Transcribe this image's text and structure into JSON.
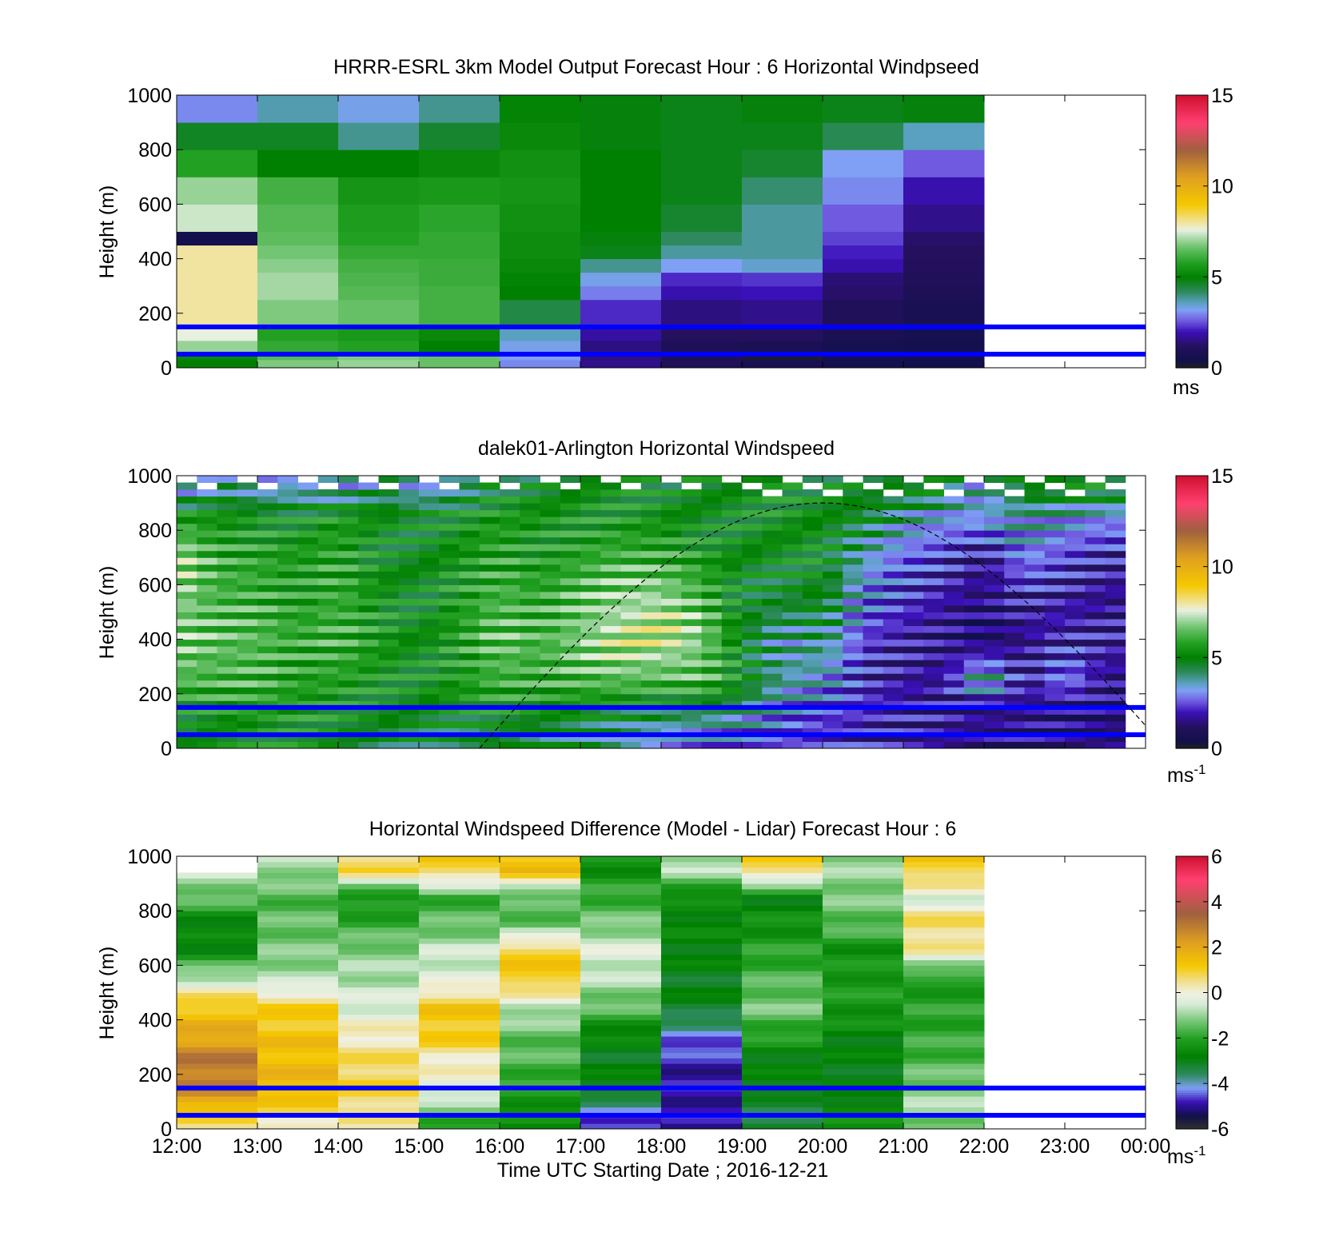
{
  "figure": {
    "xlabel": "Time UTC  Starting Date ; 2016-12-21",
    "x_ticks": [
      "12:00",
      "13:00",
      "14:00",
      "15:00",
      "16:00",
      "17:00",
      "18:00",
      "19:00",
      "20:00",
      "21:00",
      "22:00",
      "23:00",
      "00:00"
    ]
  },
  "colormaps": {
    "speed": [
      [
        0,
        "#202020"
      ],
      [
        0.4,
        "#10104a"
      ],
      [
        1.2,
        "#25105e"
      ],
      [
        2.0,
        "#3a10b8"
      ],
      [
        2.6,
        "#6f5ae0"
      ],
      [
        3.2,
        "#7fa0f5"
      ],
      [
        3.6,
        "#5aa0c0"
      ],
      [
        4.2,
        "#2e8a5e"
      ],
      [
        5.0,
        "#008000"
      ],
      [
        5.8,
        "#22a022"
      ],
      [
        6.6,
        "#66c066"
      ],
      [
        7.2,
        "#b0dcb0"
      ],
      [
        7.6,
        "#e8f0e0"
      ],
      [
        8.0,
        "#f0e4a0"
      ],
      [
        9.0,
        "#f5c800"
      ],
      [
        10.5,
        "#e0a020"
      ],
      [
        12.0,
        "#a06040"
      ],
      [
        13.5,
        "#ff4070"
      ],
      [
        15,
        "#d01030"
      ]
    ],
    "diff": [
      [
        -6,
        "#303030"
      ],
      [
        -5.4,
        "#10104a"
      ],
      [
        -4.8,
        "#3a10b8"
      ],
      [
        -4.2,
        "#7fa0f5"
      ],
      [
        -3.6,
        "#2e8a5e"
      ],
      [
        -2.8,
        "#008000"
      ],
      [
        -2.0,
        "#22a022"
      ],
      [
        -1.2,
        "#7cc87c"
      ],
      [
        -0.5,
        "#d8ecd8"
      ],
      [
        0,
        "#f0f0e0"
      ],
      [
        0.5,
        "#f0e090"
      ],
      [
        1.2,
        "#f5c800"
      ],
      [
        2.2,
        "#e0a020"
      ],
      [
        3.5,
        "#a06040"
      ],
      [
        5,
        "#ff4070"
      ],
      [
        6,
        "#d01030"
      ]
    ]
  },
  "chart_data": [
    {
      "type": "heatmap",
      "title": "HRRR-ESRL 3km Model Output   Forecast Hour : 6 Horizontal Windpseed",
      "xlabel": "",
      "ylabel": "Height (m)",
      "xlim": [
        "12:00",
        "00:00"
      ],
      "ylim": [
        0,
        1000
      ],
      "y_ticks": [
        "0",
        "200",
        "400",
        "600",
        "800",
        "1000"
      ],
      "colorbar": {
        "colormap": "speed",
        "range": [
          0,
          15
        ],
        "ticks": [
          "0",
          "5",
          "10",
          "15"
        ],
        "unit": "ms",
        "unit_superscript": ""
      },
      "column_times": [
        "12:00",
        "13:00",
        "14:00",
        "15:00",
        "16:00",
        "17:00",
        "18:00",
        "19:00",
        "20:00",
        "21:00"
      ],
      "column_width_hours": 1,
      "level_tops_m": [
        30,
        50,
        100,
        150,
        250,
        300,
        350,
        400,
        450,
        500,
        600,
        700,
        800,
        900,
        1000
      ],
      "values_ms": [
        [
          5.0,
          6.8,
          7.0,
          6.6,
          3.0,
          1.6,
          1.0,
          0.7,
          0.6,
          0.5
        ],
        [
          5.2,
          6.4,
          6.8,
          6.6,
          3.2,
          1.5,
          0.9,
          0.1,
          0.6,
          0.5
        ],
        [
          7.0,
          6.0,
          5.8,
          5.0,
          3.3,
          1.5,
          0.9,
          0.8,
          0.6,
          0.5
        ],
        [
          7.6,
          5.8,
          5.6,
          5.2,
          3.6,
          1.8,
          1.2,
          1.2,
          0.8,
          0.6
        ],
        [
          8.0,
          6.8,
          6.6,
          6.2,
          4.4,
          2.2,
          1.5,
          1.6,
          1.0,
          0.7
        ],
        [
          8.0,
          7.1,
          6.4,
          6.2,
          5.0,
          2.9,
          1.9,
          2.0,
          1.3,
          0.9
        ],
        [
          8.0,
          7.1,
          6.3,
          6.1,
          5.1,
          3.3,
          2.2,
          2.3,
          1.4,
          1.0
        ],
        [
          8.0,
          6.9,
          6.2,
          6.1,
          5.2,
          3.9,
          3.2,
          3.5,
          1.9,
          1.1
        ],
        [
          8.0,
          6.7,
          6.0,
          6.0,
          5.3,
          4.8,
          3.8,
          3.8,
          2.1,
          1.2
        ],
        [
          0.5,
          6.5,
          5.8,
          6.0,
          5.3,
          4.9,
          4.2,
          3.8,
          2.4,
          1.3
        ],
        [
          7.4,
          6.4,
          5.7,
          5.9,
          5.4,
          5.0,
          4.6,
          3.8,
          2.6,
          1.6
        ],
        [
          7.0,
          6.2,
          5.5,
          5.6,
          5.5,
          5.0,
          4.8,
          4.1,
          3.0,
          1.9
        ],
        [
          5.8,
          5.0,
          5.0,
          5.2,
          5.4,
          5.0,
          4.8,
          4.6,
          3.2,
          2.6
        ],
        [
          4.7,
          4.7,
          3.9,
          4.6,
          5.2,
          4.9,
          4.8,
          4.8,
          4.3,
          3.6
        ],
        [
          3.0,
          3.7,
          3.3,
          3.9,
          5.1,
          4.9,
          4.8,
          4.9,
          4.8,
          4.9
        ]
      ],
      "reference_lines_m": [
        50,
        150
      ]
    },
    {
      "type": "heatmap",
      "title": "dalek01-Arlington  Horizontal Windspeed",
      "xlabel": "",
      "ylabel": "Height (m)",
      "xlim": [
        "12:00",
        "00:00"
      ],
      "ylim": [
        0,
        1000
      ],
      "y_ticks": [
        "0",
        "200",
        "400",
        "600",
        "800",
        "1000"
      ],
      "colorbar": {
        "colormap": "speed",
        "range": [
          0,
          15
        ],
        "ticks": [
          "0",
          "5",
          "10",
          "15"
        ],
        "unit": "ms",
        "unit_superscript": "-1"
      },
      "data_end_time": "23:45",
      "profiles": {
        "hours": [
          12.0,
          12.5,
          13.0,
          13.5,
          14.0,
          14.5,
          15.0,
          15.5,
          16.0,
          16.5,
          17.0,
          17.5,
          18.0,
          18.5,
          19.0,
          19.5,
          20.0,
          20.5,
          21.0,
          21.5,
          22.0,
          22.5,
          23.0,
          23.5
        ],
        "heights_m": [
          50,
          150,
          250,
          400,
          550,
          700,
          850,
          950
        ],
        "values_ms": [
          [
            4.8,
            5.0,
            5.1,
            5.3,
            5.0,
            4.6,
            4.7,
            4.5,
            4.7,
            4.4,
            4.3,
            3.8,
            3.3,
            3.0,
            2.8,
            2.4,
            2.2,
            2.0,
            1.9,
            1.8,
            1.6,
            1.5,
            1.4,
            1.3
          ],
          [
            5.2,
            5.6,
            5.8,
            5.6,
            5.3,
            5.1,
            5.0,
            5.2,
            5.4,
            5.3,
            5.3,
            5.0,
            4.8,
            4.7,
            4.2,
            3.1,
            2.6,
            2.2,
            1.9,
            1.8,
            1.6,
            1.7,
            1.5,
            1.4
          ],
          [
            6.4,
            6.2,
            6.2,
            5.7,
            5.8,
            5.4,
            5.2,
            5.6,
            6.2,
            6.0,
            6.3,
            6.5,
            6.3,
            6.4,
            5.2,
            3.8,
            3.4,
            2.1,
            1.8,
            1.7,
            4.4,
            1.6,
            3.1,
            1.6
          ],
          [
            6.8,
            6.5,
            6.4,
            6.0,
            6.2,
            5.6,
            5.0,
            5.7,
            6.6,
            6.2,
            6.8,
            7.4,
            7.6,
            6.8,
            5.0,
            3.6,
            4.2,
            2.4,
            1.9,
            1.5,
            1.0,
            1.6,
            2.1,
            1.9
          ],
          [
            6.9,
            6.2,
            6.1,
            5.6,
            6.1,
            5.4,
            5.0,
            5.6,
            6.3,
            5.9,
            6.5,
            7.0,
            7.1,
            6.3,
            4.9,
            4.6,
            5.0,
            3.0,
            2.3,
            1.9,
            1.4,
            2.0,
            1.8,
            1.6
          ],
          [
            7.3,
            6.0,
            5.9,
            5.6,
            5.9,
            5.1,
            4.9,
            5.4,
            5.9,
            5.5,
            5.9,
            6.2,
            6.0,
            5.6,
            5.0,
            5.1,
            5.2,
            3.6,
            2.7,
            2.3,
            1.6,
            3.1,
            2.4,
            2.0
          ],
          [
            5.6,
            5.4,
            5.3,
            5.1,
            5.6,
            5.2,
            5.0,
            5.3,
            5.6,
            5.4,
            5.4,
            5.4,
            5.3,
            5.0,
            5.2,
            5.3,
            5.1,
            4.8,
            3.9,
            3.2,
            3.3,
            3.6,
            3.4,
            3.1
          ],
          [
            3.1,
            4.2,
            3.4,
            3.5,
            3.3,
            4.1,
            3.2,
            3.8,
            5.0,
            4.8,
            5.2,
            5.2,
            5.0,
            4.9,
            5.1,
            5.2,
            5.0,
            4.9,
            5.0,
            4.9,
            3.2,
            5.1,
            5.0,
            5.2
          ]
        ]
      },
      "reference_lines_m": [
        50,
        150
      ],
      "dashed_curve": {
        "description_free": true,
        "start_time": "15:45",
        "peak_time": "20:00",
        "peak_height_m": 900,
        "end_time": "00:00",
        "end_height_m": 80
      }
    },
    {
      "type": "heatmap",
      "title": "Horizontal Windspeed Difference (Model - Lidar) Forecast Hour : 6",
      "xlabel": "Time UTC  Starting Date ; 2016-12-21",
      "ylabel": "Height (m)",
      "xlim": [
        "12:00",
        "00:00"
      ],
      "ylim": [
        0,
        1000
      ],
      "y_ticks": [
        "0",
        "200",
        "400",
        "600",
        "800",
        "1000"
      ],
      "colorbar": {
        "colormap": "diff",
        "range": [
          -6,
          6
        ],
        "ticks": [
          "-6",
          "-4",
          "-2",
          "0",
          "2",
          "4",
          "6"
        ],
        "unit": "ms",
        "unit_superscript": "-1"
      },
      "column_times": [
        "12:00",
        "13:00",
        "14:00",
        "15:00",
        "16:00",
        "17:00",
        "18:00",
        "19:00",
        "20:00",
        "21:00"
      ],
      "column_width_hours": 1,
      "data_top_m": [
        930,
        1000,
        1000,
        1000,
        1000,
        1000,
        1000,
        1000,
        1000,
        1000
      ],
      "profiles_heights_m": [
        20,
        75,
        150,
        250,
        350,
        450,
        550,
        650,
        750,
        850,
        950
      ],
      "values_ms": [
        [
          0.5,
          1.6,
          2.8,
          3.0,
          1.9,
          1.2,
          -0.6,
          -2.6,
          -2.8,
          -1.4,
          -0.6
        ],
        [
          0.2,
          0.9,
          1.6,
          1.5,
          1.3,
          1.0,
          -0.8,
          -1.2,
          -1.4,
          -1.6,
          -0.9
        ],
        [
          0.3,
          0.6,
          1.0,
          0.7,
          0.2,
          -0.4,
          -0.8,
          -1.1,
          -1.8,
          -2.4,
          0.8
        ],
        [
          -2.0,
          -1.2,
          -0.2,
          0.2,
          1.2,
          1.2,
          -0.4,
          -0.6,
          -1.4,
          -1.8,
          1.0
        ],
        [
          -2.6,
          -2.4,
          -2.0,
          -1.6,
          -1.4,
          -0.6,
          1.2,
          1.1,
          -1.4,
          -1.6,
          1.4
        ],
        [
          -4.6,
          -4.2,
          -2.8,
          -3.0,
          -2.7,
          -1.4,
          -0.8,
          -0.3,
          -1.2,
          -1.8,
          -2.4
        ],
        [
          -5.0,
          -4.8,
          -4.9,
          -4.8,
          -4.2,
          -3.0,
          -3.0,
          -2.8,
          -2.7,
          -2.6,
          -0.8
        ],
        [
          -3.2,
          -3.6,
          -2.8,
          -2.9,
          -2.0,
          -1.2,
          -1.6,
          -2.0,
          -2.4,
          -2.8,
          0.9
        ],
        [
          -2.4,
          -2.6,
          -2.9,
          -2.9,
          -2.7,
          -2.2,
          -2.2,
          -2.4,
          -1.5,
          -1.2,
          -1.0
        ],
        [
          -1.4,
          -0.8,
          -1.2,
          -1.6,
          -1.9,
          -2.0,
          -2.2,
          0.2,
          0.8,
          -0.4,
          1.1
        ]
      ],
      "reference_lines_m": [
        50,
        150
      ]
    }
  ]
}
